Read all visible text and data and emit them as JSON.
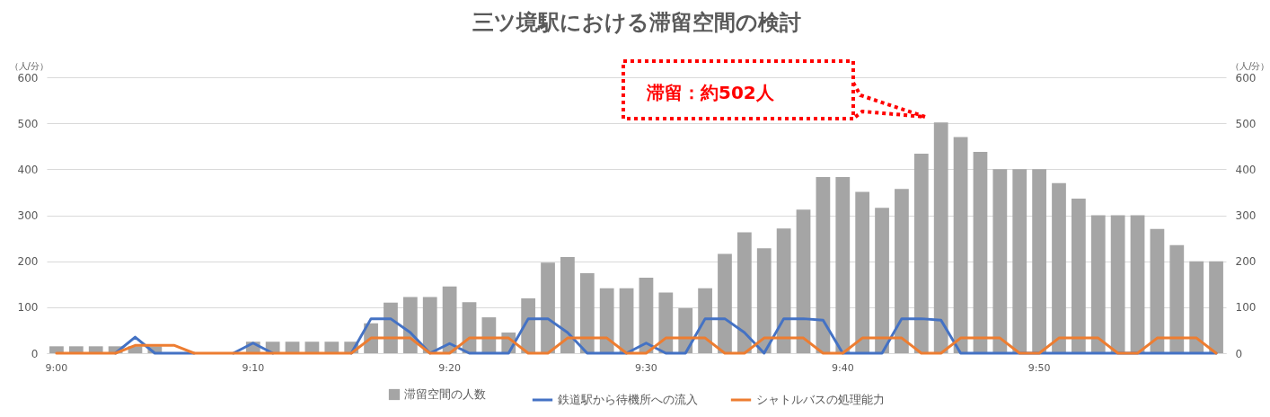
{
  "chart_data": {
    "type": "bar",
    "title": "三ツ境駅における滞留空間の検討",
    "categories": [
      "9:00",
      null,
      null,
      null,
      null,
      null,
      null,
      null,
      null,
      null,
      "9:10",
      null,
      null,
      null,
      null,
      null,
      null,
      null,
      null,
      null,
      "9:20",
      null,
      null,
      null,
      null,
      null,
      null,
      null,
      null,
      null,
      "9:30",
      null,
      null,
      null,
      null,
      null,
      null,
      null,
      null,
      null,
      "9:40",
      null,
      null,
      null,
      null,
      null,
      null,
      null,
      null,
      null,
      "9:50",
      null,
      null,
      null,
      null,
      null,
      null,
      null,
      null,
      null
    ],
    "series": [
      {
        "name": "滞留空間の人数",
        "color": "#a5a5a5",
        "values": [
          15,
          15,
          15,
          15,
          15,
          15,
          0,
          0,
          0,
          0,
          25,
          25,
          25,
          25,
          25,
          25,
          65,
          110,
          122,
          122,
          145,
          111,
          78,
          45,
          119,
          197,
          209,
          174,
          141,
          141,
          164,
          132,
          98,
          141,
          216,
          263,
          228,
          271,
          312,
          383,
          383,
          351,
          316,
          357,
          434,
          502,
          470,
          438,
          400,
          400,
          400,
          370,
          336,
          300,
          300,
          300,
          270,
          235,
          200,
          200
        ]
      },
      {
        "name": "鉄道駅から待機所への流入",
        "type": "line",
        "axis": "y2",
        "color": "#4472c4",
        "values": [
          null,
          null,
          null,
          0,
          35,
          0,
          0,
          0,
          null,
          0,
          22,
          0,
          null,
          null,
          null,
          0,
          75,
          75,
          45,
          0,
          21,
          0,
          0,
          0,
          75,
          75,
          45,
          0,
          0,
          0,
          22,
          0,
          0,
          75,
          75,
          45,
          0,
          75,
          75,
          72,
          0,
          0,
          0,
          75,
          75,
          72,
          0,
          0,
          0,
          0,
          0,
          0,
          0,
          0,
          0,
          0,
          0,
          0,
          0,
          0
        ]
      },
      {
        "name": "シャトルバスの処理能力",
        "type": "line",
        "axis": "y2",
        "color": "#ed7d31",
        "values": [
          0,
          0,
          0,
          0,
          17,
          17,
          17,
          0,
          0,
          0,
          0,
          0,
          0,
          0,
          0,
          0,
          33,
          33,
          33,
          0,
          0,
          33,
          33,
          33,
          0,
          0,
          33,
          33,
          33,
          0,
          0,
          33,
          33,
          33,
          0,
          0,
          33,
          33,
          33,
          0,
          0,
          33,
          33,
          33,
          0,
          0,
          33,
          33,
          33,
          0,
          0,
          33,
          33,
          33,
          0,
          0,
          33,
          33,
          33,
          0
        ]
      }
    ],
    "ylabel": "（人/分）",
    "y2label": "（人/分）",
    "ylim": [
      0,
      600
    ],
    "yticks": [
      0,
      100,
      200,
      300,
      400,
      500,
      600
    ],
    "y2lim": [
      0,
      600
    ],
    "y2ticks": [
      0,
      100,
      200,
      300,
      400,
      500,
      600
    ],
    "grid": "y",
    "legend": "bottom",
    "annotations": [
      "滞留：約502人"
    ]
  }
}
